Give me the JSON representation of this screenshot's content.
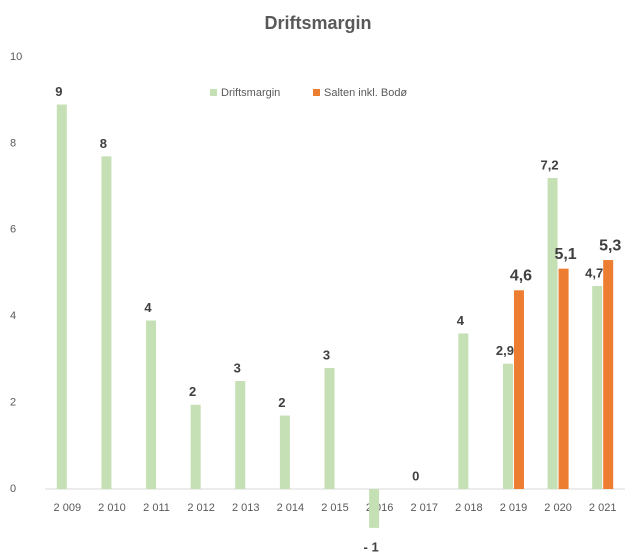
{
  "chart_data": {
    "type": "bar",
    "title": "Driftsmargin",
    "categories": [
      "2 009",
      "2 010",
      "2 011",
      "2 012",
      "2 013",
      "2 014",
      "2 015",
      "2 016",
      "2 017",
      "2 018",
      "2 019",
      "2 020",
      "2 021"
    ],
    "series": [
      {
        "name": "Driftsmargin",
        "color": "#c5e0b4",
        "values": [
          8.9,
          7.7,
          3.9,
          1.95,
          2.5,
          1.7,
          2.8,
          -0.9,
          0,
          3.6,
          2.9,
          7.2,
          4.7
        ],
        "value_labels": [
          "9",
          "8",
          "4",
          "2",
          "3",
          "2",
          "3",
          "- 1",
          "0",
          "4",
          "2,9",
          "7,2",
          "4,7"
        ]
      },
      {
        "name": "Salten inkl. Bodø",
        "color": "#ed7d31",
        "values": [
          null,
          null,
          null,
          null,
          null,
          null,
          null,
          null,
          null,
          null,
          4.6,
          5.1,
          5.3
        ],
        "value_labels": [
          null,
          null,
          null,
          null,
          null,
          null,
          null,
          null,
          null,
          null,
          "4,6",
          "5,1",
          "5,3"
        ]
      }
    ],
    "ylim": [
      -1,
      10
    ],
    "yticks": [
      0,
      2,
      4,
      6,
      8,
      10
    ],
    "grid": false,
    "legend": "top"
  }
}
